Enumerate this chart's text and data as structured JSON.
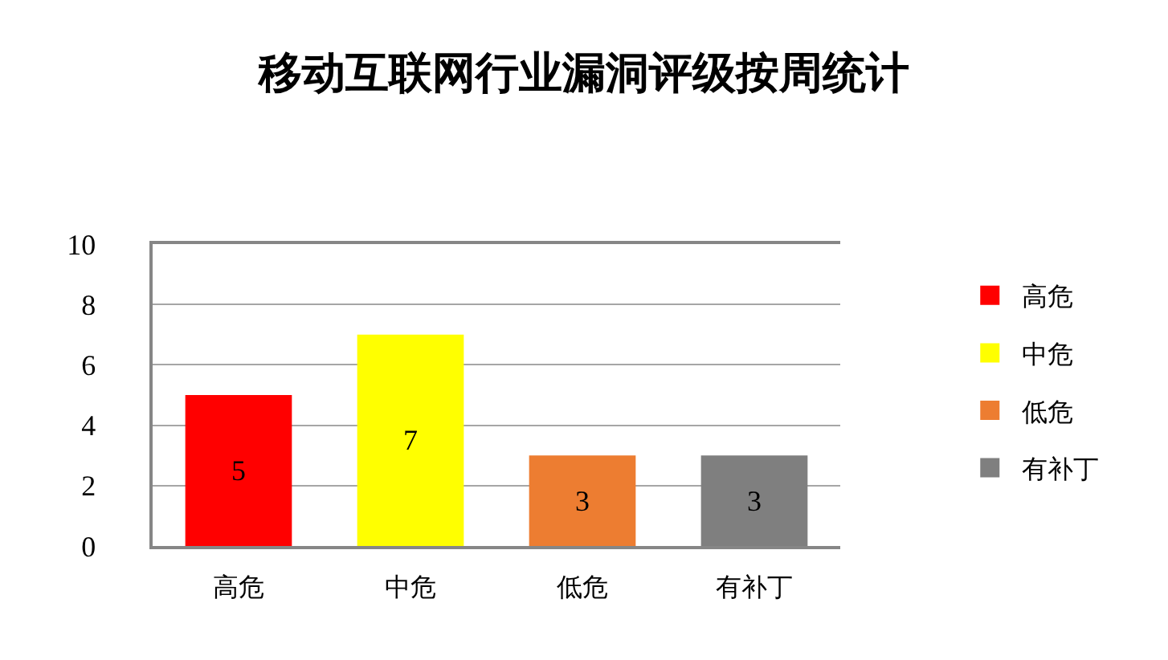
{
  "chart_data": {
    "type": "bar",
    "title": "移动互联网行业漏洞评级按周统计",
    "categories": [
      "高危",
      "中危",
      "低危",
      "有补丁"
    ],
    "series": [
      {
        "name": "高危",
        "color": "#ff0000",
        "values": [
          5,
          null,
          null,
          null
        ]
      },
      {
        "name": "中危",
        "color": "#ffff00",
        "values": [
          null,
          7,
          null,
          null
        ]
      },
      {
        "name": "低危",
        "color": "#ed7d31",
        "values": [
          null,
          null,
          3,
          null
        ]
      },
      {
        "name": "有补丁",
        "color": "#7f7f7f",
        "values": [
          null,
          null,
          null,
          3
        ]
      }
    ],
    "ylim": [
      0,
      10
    ],
    "yticks": [
      0,
      2,
      4,
      6,
      8,
      10
    ],
    "grid": "y",
    "legend": "right",
    "data_labels": true
  }
}
